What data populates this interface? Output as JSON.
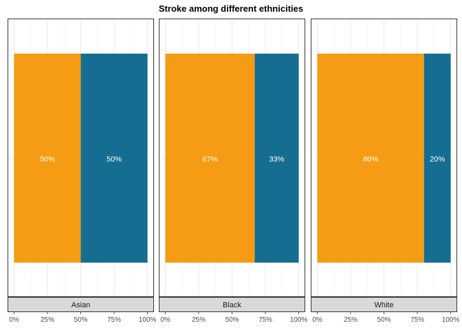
{
  "chart_data": {
    "type": "bar",
    "orientation": "horizontal",
    "stacked": "percent",
    "title": "Stroke among different ethnicities",
    "facets": [
      {
        "name": "Asian",
        "values": [
          0.5,
          0.5
        ],
        "labels": [
          "50%",
          "50%"
        ]
      },
      {
        "name": "Black",
        "values": [
          0.67,
          0.33
        ],
        "labels": [
          "67%",
          "33%"
        ]
      },
      {
        "name": "White",
        "values": [
          0.8,
          0.2
        ],
        "labels": [
          "80%",
          "20%"
        ]
      }
    ],
    "series_colors": [
      "#f59c14",
      "#156e91"
    ],
    "xlim": [
      0,
      1
    ],
    "xticks": [
      0,
      0.25,
      0.5,
      0.75,
      1
    ],
    "xtick_labels": [
      "0%",
      "25%",
      "50%",
      "75%",
      "100%"
    ],
    "grid": true,
    "legend": "none"
  }
}
